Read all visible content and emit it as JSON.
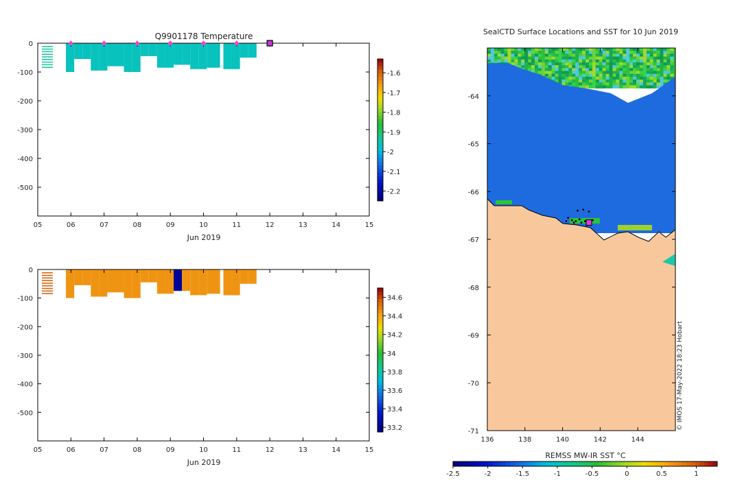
{
  "chart_data": [
    {
      "type": "heatmap",
      "panel": "temperature-section",
      "title": "Q9901178  Temperature",
      "xlabel": "Jun 2019",
      "ylabel": "",
      "x_tick_labels": [
        "05",
        "06",
        "07",
        "08",
        "09",
        "10",
        "11",
        "12",
        "13",
        "14",
        "15"
      ],
      "xlim": [
        5,
        15
      ],
      "y_tick_values": [
        0,
        -100,
        -200,
        -300,
        -400,
        -500
      ],
      "y_tick_labels": [
        "0",
        "-100",
        "-200",
        "-300",
        "-400",
        "-500"
      ],
      "ylim": [
        -600,
        0
      ],
      "colorbar": {
        "min": -2.25,
        "max": -1.53,
        "tick_values": [
          -1.6,
          -1.7,
          -1.8,
          -1.9,
          -2,
          -2.1,
          -2.2
        ],
        "tick_labels": [
          "-1.6",
          "-1.7",
          "-1.8",
          "-1.9",
          "-2",
          "-2.1",
          "-2.2"
        ]
      },
      "profile_dates_marked": [
        6.0,
        7.0,
        8.0,
        9.0,
        10.0,
        11.0
      ],
      "current_position_day": 12.0,
      "profiles": [
        {
          "day": 5.85,
          "depth": 100,
          "value": -1.97
        },
        {
          "day": 6.1,
          "depth": 55,
          "value": -1.97
        },
        {
          "day": 6.35,
          "depth": 55,
          "value": -1.97
        },
        {
          "day": 6.6,
          "depth": 95,
          "value": -1.97
        },
        {
          "day": 6.85,
          "depth": 95,
          "value": -1.97
        },
        {
          "day": 7.1,
          "depth": 80,
          "value": -1.97
        },
        {
          "day": 7.35,
          "depth": 80,
          "value": -1.97
        },
        {
          "day": 7.6,
          "depth": 100,
          "value": -1.97
        },
        {
          "day": 7.85,
          "depth": 100,
          "value": -1.97
        },
        {
          "day": 8.1,
          "depth": 45,
          "value": -1.97
        },
        {
          "day": 8.35,
          "depth": 45,
          "value": -1.97
        },
        {
          "day": 8.6,
          "depth": 85,
          "value": -1.97
        },
        {
          "day": 8.85,
          "depth": 85,
          "value": -1.97
        },
        {
          "day": 9.1,
          "depth": 75,
          "value": -1.97
        },
        {
          "day": 9.35,
          "depth": 75,
          "value": -1.97
        },
        {
          "day": 9.6,
          "depth": 90,
          "value": -1.97
        },
        {
          "day": 9.85,
          "depth": 90,
          "value": -1.97
        },
        {
          "day": 10.1,
          "depth": 85,
          "value": -1.97
        },
        {
          "day": 10.6,
          "depth": 90,
          "value": -1.97
        },
        {
          "day": 10.85,
          "depth": 90,
          "value": -1.97
        },
        {
          "day": 11.1,
          "depth": 50,
          "value": -1.97
        },
        {
          "day": 11.35,
          "depth": 50,
          "value": -1.97
        }
      ]
    },
    {
      "type": "heatmap",
      "panel": "salinity-section",
      "title": "",
      "xlabel": "Jun 2019",
      "ylabel": "",
      "x_tick_labels": [
        "05",
        "06",
        "07",
        "08",
        "09",
        "10",
        "11",
        "12",
        "13",
        "14",
        "15"
      ],
      "xlim": [
        5,
        15
      ],
      "y_tick_values": [
        0,
        -100,
        -200,
        -300,
        -400,
        -500
      ],
      "y_tick_labels": [
        "0",
        "-100",
        "-200",
        "-300",
        "-400",
        "-500"
      ],
      "ylim": [
        -600,
        0
      ],
      "colorbar": {
        "min": 33.15,
        "max": 34.7,
        "tick_values": [
          34.6,
          34.4,
          34.2,
          34,
          33.8,
          33.6,
          33.4,
          33.2
        ],
        "tick_labels": [
          "34.6",
          "34.4",
          "34.2",
          "34",
          "33.8",
          "33.6",
          "33.4",
          "33.2"
        ]
      },
      "profiles": [
        {
          "day": 5.85,
          "depth": 100,
          "value": 34.45
        },
        {
          "day": 6.1,
          "depth": 55,
          "value": 34.45
        },
        {
          "day": 6.35,
          "depth": 55,
          "value": 34.45
        },
        {
          "day": 6.6,
          "depth": 95,
          "value": 34.45
        },
        {
          "day": 6.85,
          "depth": 95,
          "value": 34.45
        },
        {
          "day": 7.1,
          "depth": 80,
          "value": 34.45
        },
        {
          "day": 7.35,
          "depth": 80,
          "value": 34.45
        },
        {
          "day": 7.6,
          "depth": 100,
          "value": 34.45
        },
        {
          "day": 7.85,
          "depth": 100,
          "value": 34.45
        },
        {
          "day": 8.1,
          "depth": 45,
          "value": 34.45
        },
        {
          "day": 8.35,
          "depth": 45,
          "value": 34.45
        },
        {
          "day": 8.6,
          "depth": 85,
          "value": 34.45
        },
        {
          "day": 8.85,
          "depth": 85,
          "value": 34.45
        },
        {
          "day": 9.1,
          "depth": 75,
          "value": 33.2
        },
        {
          "day": 9.35,
          "depth": 75,
          "value": 34.45
        },
        {
          "day": 9.6,
          "depth": 90,
          "value": 34.45
        },
        {
          "day": 9.85,
          "depth": 90,
          "value": 34.45
        },
        {
          "day": 10.1,
          "depth": 85,
          "value": 34.45
        },
        {
          "day": 10.6,
          "depth": 90,
          "value": 34.45
        },
        {
          "day": 10.85,
          "depth": 90,
          "value": 34.45
        },
        {
          "day": 11.1,
          "depth": 50,
          "value": 34.45
        },
        {
          "day": 11.35,
          "depth": 50,
          "value": 34.45
        }
      ]
    },
    {
      "type": "heatmap",
      "panel": "sst-map",
      "title": "SealCTD Surface Locations and SST for 10 Jun 2019",
      "xlabel": "",
      "ylabel": "",
      "x_tick_labels": [
        "136",
        "138",
        "140",
        "142",
        "144"
      ],
      "xlim": [
        136,
        146
      ],
      "y_tick_values": [
        -64,
        -65,
        -66,
        -67,
        -68,
        -69,
        -70,
        -71
      ],
      "y_tick_labels": [
        "-64",
        "-65",
        "-66",
        "-67",
        "-68",
        "-69",
        "-70",
        "-71"
      ],
      "ylim": [
        -71,
        -63
      ],
      "colorbar": {
        "label": "REMSS MW-IR SST °C",
        "min": -2.5,
        "max": 1.3,
        "tick_values": [
          -2.5,
          -2,
          -1.5,
          -1,
          -0.5,
          0,
          0.5,
          1
        ],
        "tick_labels": [
          "-2.5",
          "-2",
          "-1.5",
          "-1",
          "-0.5",
          "0",
          "0.5",
          "1"
        ]
      },
      "land_color": "#f8c89c",
      "ocean_sst_color": "#1e6be0",
      "current_position": {
        "lon": 141.4,
        "lat": -66.65
      },
      "surface_locations": [
        {
          "lon": 140.3,
          "lat": -66.55
        },
        {
          "lon": 140.5,
          "lat": -66.6
        },
        {
          "lon": 140.7,
          "lat": -66.62
        },
        {
          "lon": 140.9,
          "lat": -66.58
        },
        {
          "lon": 141.0,
          "lat": -66.65
        },
        {
          "lon": 141.2,
          "lat": -66.62
        },
        {
          "lon": 141.3,
          "lat": -66.7
        },
        {
          "lon": 141.5,
          "lat": -66.68
        },
        {
          "lon": 140.8,
          "lat": -66.4
        },
        {
          "lon": 141.1,
          "lat": -66.38
        },
        {
          "lon": 141.4,
          "lat": -66.42
        },
        {
          "lon": 140.6,
          "lat": -66.65
        },
        {
          "lon": 140.2,
          "lat": -66.62
        },
        {
          "lon": 141.6,
          "lat": -66.6
        }
      ]
    }
  ],
  "credit": "© IMOS 17-May-2022 18:23 Hobart"
}
